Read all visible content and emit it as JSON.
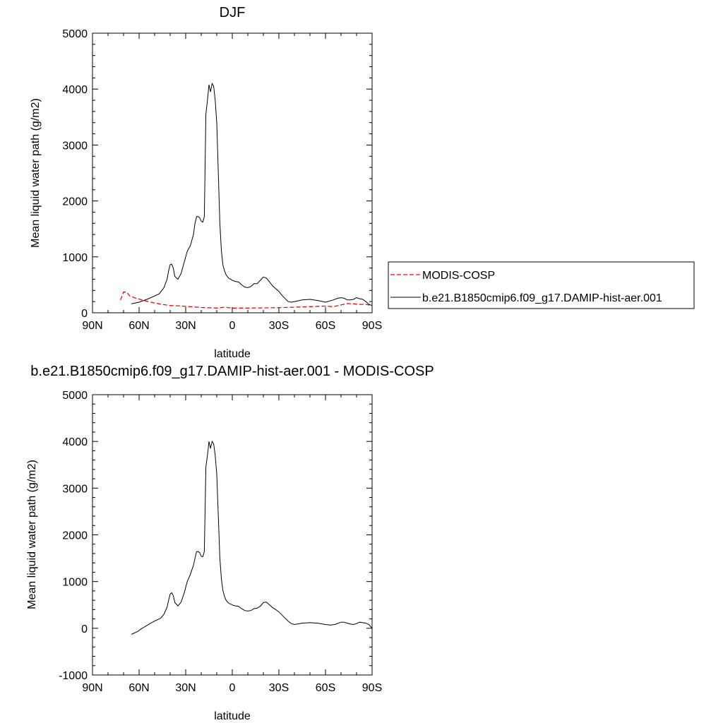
{
  "chart_data": [
    {
      "type": "line",
      "title": "DJF",
      "xlabel": "latitude",
      "ylabel": "Mean liquid water path (g/m2)",
      "xlim": [
        90,
        -90
      ],
      "ylim": [
        0,
        5000
      ],
      "x_ticks": [
        90,
        60,
        30,
        0,
        -30,
        -60,
        -90
      ],
      "x_tick_labels": [
        "90N",
        "60N",
        "30N",
        "0",
        "30S",
        "60S",
        "90S"
      ],
      "y_ticks": [
        0,
        1000,
        2000,
        3000,
        4000,
        5000
      ],
      "y_tick_labels": [
        "0",
        "1000",
        "2000",
        "3000",
        "4000",
        "5000"
      ],
      "legend": "right",
      "series": [
        {
          "name": "MODIS-COSP",
          "color": "#ff0000",
          "dash": "dashed",
          "x": [
            72,
            70,
            68,
            66,
            62,
            58,
            54,
            50,
            45,
            40,
            35,
            30,
            25,
            20,
            15,
            10,
            5,
            0,
            -5,
            -10,
            -20,
            -30,
            -40,
            -50,
            -60,
            -65,
            -70,
            -74,
            -78,
            -82,
            -86,
            -90
          ],
          "y": [
            230,
            370,
            370,
            300,
            260,
            230,
            200,
            175,
            150,
            130,
            125,
            115,
            105,
            95,
            90,
            85,
            100,
            85,
            85,
            85,
            88,
            92,
            100,
            110,
            120,
            110,
            140,
            165,
            160,
            150,
            150,
            130
          ]
        },
        {
          "name": "b.e21.B1850cmip6.f09_g17.DAMIP-hist-aer.001",
          "color": "#000000",
          "dash": "solid",
          "x": [
            65,
            60,
            55,
            50,
            47,
            44,
            42,
            41,
            40,
            39,
            38,
            37,
            35,
            33,
            31,
            29,
            27,
            25,
            24,
            23,
            22,
            21,
            20,
            19,
            18,
            17,
            16,
            15,
            14,
            13,
            12,
            11,
            10,
            9,
            8,
            7,
            6,
            5,
            4,
            3,
            2,
            1,
            0,
            -2,
            -4,
            -6,
            -8,
            -10,
            -12,
            -14,
            -16,
            -18,
            -20,
            -22,
            -24,
            -26,
            -28,
            -30,
            -33,
            -36,
            -38,
            -40,
            -45,
            -50,
            -55,
            -60,
            -65,
            -68,
            -70,
            -72,
            -74,
            -76,
            -78,
            -80,
            -82,
            -84,
            -86,
            -88,
            -90
          ],
          "y": [
            160,
            190,
            240,
            300,
            340,
            450,
            600,
            750,
            860,
            870,
            800,
            650,
            600,
            700,
            900,
            1100,
            1200,
            1400,
            1600,
            1720,
            1720,
            1700,
            1640,
            1620,
            1720,
            3550,
            3800,
            4080,
            3950,
            4100,
            4050,
            3800,
            3400,
            2500,
            1600,
            1100,
            850,
            750,
            680,
            640,
            610,
            600,
            580,
            560,
            550,
            500,
            460,
            450,
            470,
            520,
            520,
            580,
            640,
            620,
            550,
            480,
            430,
            380,
            280,
            200,
            190,
            200,
            230,
            240,
            220,
            190,
            230,
            260,
            270,
            260,
            230,
            230,
            240,
            270,
            250,
            240,
            200,
            150,
            130
          ]
        }
      ]
    },
    {
      "type": "line",
      "title": "b.e21.B1850cmip6.f09_g17.DAMIP-hist-aer.001 - MODIS-COSP",
      "xlabel": "latitude",
      "ylabel": "Mean liquid water path (g/m2)",
      "xlim": [
        90,
        -90
      ],
      "ylim": [
        -1000,
        5000
      ],
      "x_ticks": [
        90,
        60,
        30,
        0,
        -30,
        -60,
        -90
      ],
      "x_tick_labels": [
        "90N",
        "60N",
        "30N",
        "0",
        "30S",
        "60S",
        "90S"
      ],
      "y_ticks": [
        -1000,
        0,
        1000,
        2000,
        3000,
        4000,
        5000
      ],
      "y_tick_labels": [
        "-1000",
        "0",
        "1000",
        "2000",
        "3000",
        "4000",
        "5000"
      ],
      "series": [
        {
          "color": "#000000",
          "dash": "solid",
          "x": [
            65,
            63,
            61,
            59,
            57,
            55,
            52,
            49,
            46,
            44,
            42,
            41,
            40,
            39,
            38,
            37,
            35,
            33,
            31,
            29,
            27,
            25,
            24,
            23,
            22,
            21,
            20,
            19,
            18,
            17,
            16,
            15,
            14,
            13,
            12,
            11,
            10,
            9,
            8,
            7,
            6,
            5,
            4,
            3,
            2,
            1,
            0,
            -2,
            -4,
            -6,
            -8,
            -10,
            -12,
            -14,
            -16,
            -18,
            -20,
            -22,
            -24,
            -26,
            -28,
            -30,
            -33,
            -36,
            -38,
            -40,
            -45,
            -50,
            -55,
            -60,
            -63,
            -66,
            -70,
            -72,
            -74,
            -76,
            -78,
            -80,
            -82,
            -84,
            -86,
            -88,
            -90
          ],
          "y": [
            -130,
            -100,
            -70,
            -20,
            20,
            60,
            120,
            170,
            220,
            300,
            450,
            600,
            730,
            760,
            700,
            550,
            480,
            560,
            750,
            1000,
            1150,
            1350,
            1500,
            1640,
            1640,
            1620,
            1540,
            1530,
            1640,
            3450,
            3700,
            4000,
            3850,
            4000,
            3950,
            3700,
            3300,
            2400,
            1500,
            1050,
            800,
            680,
            600,
            560,
            530,
            520,
            500,
            480,
            470,
            420,
            380,
            370,
            380,
            420,
            430,
            470,
            550,
            560,
            500,
            440,
            400,
            350,
            250,
            150,
            100,
            80,
            110,
            120,
            110,
            80,
            70,
            80,
            130,
            130,
            110,
            90,
            80,
            100,
            130,
            120,
            110,
            80,
            0
          ]
        }
      ]
    }
  ]
}
